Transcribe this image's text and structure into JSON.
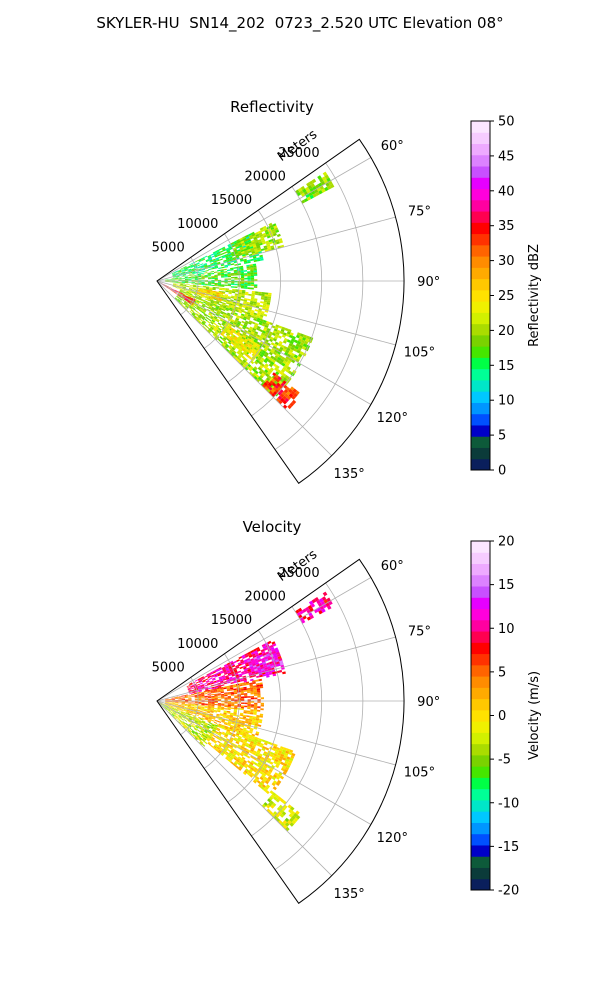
{
  "suptitle": "SKYLER-HU  SN14_202  0723_2.520 UTC Elevation 08°",
  "chart_data": [
    {
      "type": "polar_sector",
      "title": "Reflectivity",
      "radial_label": "Meters",
      "radial_ticks": [
        5000,
        10000,
        15000,
        20000,
        25000
      ],
      "radial_limit": [
        0,
        30000
      ],
      "angle_ticks": [
        "60°",
        "75°",
        "90°",
        "105°",
        "120°",
        "135°"
      ],
      "angle_range_deg": [
        55,
        145
      ],
      "grid": true,
      "colorbar": {
        "label": "Reflectivity dBZ",
        "range": [
          0,
          50
        ],
        "ticks": [
          0,
          5,
          10,
          15,
          20,
          25,
          30,
          35,
          40,
          45,
          50
        ],
        "colors": [
          "#0a1f5c",
          "#0b3b3a",
          "#0d5a3a",
          "#0000c8",
          "#0050ff",
          "#0096ff",
          "#00c8ff",
          "#00e6c8",
          "#00ff96",
          "#00ff46",
          "#46e600",
          "#7ad200",
          "#aadc00",
          "#d2f000",
          "#f0f000",
          "#ffe100",
          "#ffc800",
          "#ffaa00",
          "#ff8c00",
          "#ff6400",
          "#ff3200",
          "#ff0000",
          "#ff0050",
          "#ff00a0",
          "#ff00dc",
          "#e600ff",
          "#c850ff",
          "#dc82ff",
          "#eeaaff",
          "#f6ccff",
          "#fbe6ff"
        ]
      },
      "echo_regions": [
        {
          "az": [
            57,
            62
          ],
          "range_km": [
            20,
            24
          ],
          "value": 19
        },
        {
          "az": [
            63,
            79
          ],
          "range_km": [
            2,
            13
          ],
          "value": 15
        },
        {
          "az": [
            63,
            75
          ],
          "range_km": [
            10,
            16
          ],
          "value": 20
        },
        {
          "az": [
            80,
            95
          ],
          "range_km": [
            1,
            12
          ],
          "value": 17
        },
        {
          "az": [
            96,
            110
          ],
          "range_km": [
            2,
            14
          ],
          "value": 21
        },
        {
          "az": [
            100,
            108
          ],
          "range_km": [
            5,
            8
          ],
          "value": 26
        },
        {
          "az": [
            110,
            135
          ],
          "range_km": [
            3,
            20
          ],
          "value": 20
        },
        {
          "az": [
            122,
            130
          ],
          "range_km": [
            10,
            15
          ],
          "value": 24
        },
        {
          "az": [
            128,
            135
          ],
          "range_km": [
            18,
            22
          ],
          "value": 33
        },
        {
          "az": [
            116,
            124
          ],
          "range_km": [
            0,
            5
          ],
          "value": 35
        }
      ]
    },
    {
      "type": "polar_sector",
      "title": "Velocity",
      "radial_label": "Meters",
      "radial_ticks": [
        5000,
        10000,
        15000,
        20000,
        25000
      ],
      "radial_limit": [
        0,
        30000
      ],
      "angle_ticks": [
        "60°",
        "75°",
        "90°",
        "105°",
        "120°",
        "135°"
      ],
      "angle_range_deg": [
        55,
        145
      ],
      "grid": true,
      "colorbar": {
        "label": "Velocity (m/s)",
        "range": [
          -20,
          20
        ],
        "ticks": [
          -20,
          -15,
          -10,
          -5,
          0,
          5,
          10,
          15,
          20
        ],
        "colors": [
          "#0a1f5c",
          "#0b3b3a",
          "#0d5a3a",
          "#0000c8",
          "#0050ff",
          "#0096ff",
          "#00c8ff",
          "#00e6c8",
          "#00ff96",
          "#00ff46",
          "#46e600",
          "#7ad200",
          "#aadc00",
          "#d2f000",
          "#f0f000",
          "#ffe100",
          "#ffc800",
          "#ffaa00",
          "#ff8c00",
          "#ff6400",
          "#ff3200",
          "#ff0000",
          "#ff0050",
          "#ff00a0",
          "#ff00dc",
          "#e600ff",
          "#c850ff",
          "#dc82ff",
          "#eeaaff",
          "#f6ccff",
          "#fbe6ff"
        ]
      },
      "echo_regions": [
        {
          "az": [
            57,
            62
          ],
          "range_km": [
            20,
            24
          ],
          "value": 10
        },
        {
          "az": [
            62,
            78
          ],
          "range_km": [
            4,
            16
          ],
          "value": 10
        },
        {
          "az": [
            66,
            74
          ],
          "range_km": [
            12,
            16
          ],
          "value": 13
        },
        {
          "az": [
            78,
            95
          ],
          "range_km": [
            1,
            13
          ],
          "value": 5
        },
        {
          "az": [
            95,
            112
          ],
          "range_km": [
            1,
            13
          ],
          "value": 1
        },
        {
          "az": [
            112,
            135
          ],
          "range_km": [
            0,
            8
          ],
          "value": -3
        },
        {
          "az": [
            110,
            130
          ],
          "range_km": [
            8,
            18
          ],
          "value": 0
        },
        {
          "az": [
            128,
            135
          ],
          "range_km": [
            18,
            22
          ],
          "value": -2
        }
      ]
    }
  ]
}
